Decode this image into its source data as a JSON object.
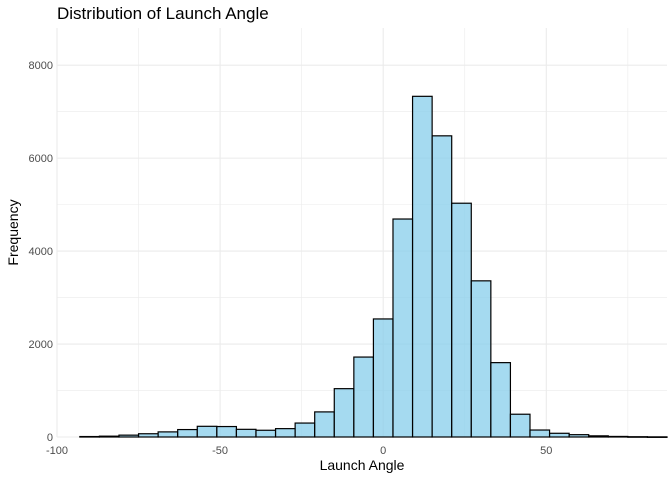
{
  "chart_data": {
    "type": "bar",
    "title": "Distribution of Launch Angle",
    "xlabel": "Launch Angle",
    "ylabel": "Frequency",
    "xlim": [
      -100,
      87
    ],
    "ylim": [
      0,
      8800
    ],
    "x_ticks": [
      -100,
      -50,
      0,
      50
    ],
    "x_tick_labels": [
      "-100",
      "-50",
      "0",
      "50"
    ],
    "y_ticks": [
      0,
      2000,
      4000,
      6000,
      8000
    ],
    "y_tick_labels": [
      "0",
      "2000",
      "4000",
      "6000",
      "8000"
    ],
    "grid": true,
    "bin_width": 6,
    "bins_start": [
      -93,
      -87,
      -81,
      -75,
      -69,
      -63,
      -57,
      -51,
      -45,
      -39,
      -33,
      -27,
      -21,
      -15,
      -9,
      -3,
      3,
      9,
      15,
      21,
      27,
      33,
      39,
      45,
      51,
      57,
      63,
      69,
      75,
      81
    ],
    "values": [
      10,
      18,
      40,
      70,
      110,
      160,
      230,
      225,
      165,
      145,
      180,
      300,
      540,
      1040,
      1720,
      2540,
      4690,
      7330,
      6480,
      5030,
      3360,
      1600,
      490,
      150,
      80,
      50,
      25,
      12,
      6,
      3
    ],
    "fill_color": "#87CEEB",
    "edge_color": "#000000",
    "grid_color": "#ebebeb"
  }
}
